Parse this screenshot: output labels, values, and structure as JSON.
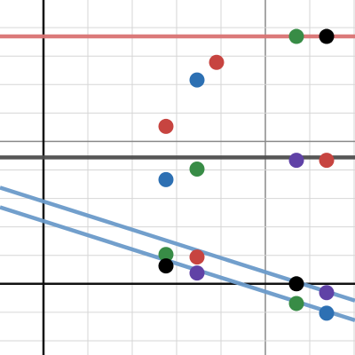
{
  "chart_data": {
    "type": "scatter",
    "xlim": [
      -0.98,
      7.02
    ],
    "ylim": [
      -2.5,
      9.97
    ],
    "xticks": [
      0,
      1,
      2,
      3,
      4,
      5,
      6,
      7
    ],
    "yticks": [
      -2,
      -1,
      0,
      1,
      2,
      3,
      4,
      5,
      6,
      7,
      8,
      9
    ],
    "major_xticks": [
      5
    ],
    "major_yticks": [
      5
    ],
    "grid": true,
    "lines": [
      {
        "color": "#d97373",
        "x": [
          -0.98,
          7.02
        ],
        "values": [
          8.69,
          8.69
        ]
      },
      {
        "color": "#4d4d4d",
        "x": [
          -0.98,
          7.02
        ],
        "values": [
          4.44,
          4.44
        ]
      },
      {
        "color": "#6a9ac9",
        "x": [
          -0.98,
          7.02
        ],
        "values": [
          3.38,
          -0.59
        ]
      },
      {
        "color": "#6a9ac9",
        "x": [
          -0.98,
          7.02
        ],
        "values": [
          2.69,
          -1.28
        ]
      }
    ],
    "series": [
      {
        "color": "#c74440",
        "x": [
          3.9,
          2.76,
          6.38,
          3.46
        ],
        "values": [
          7.78,
          5.53,
          4.34,
          0.94
        ]
      },
      {
        "color": "#2d70b3",
        "x": [
          3.46,
          2.76,
          6.38
        ],
        "values": [
          7.16,
          3.66,
          -1.03
        ]
      },
      {
        "color": "#388c46",
        "x": [
          5.7,
          3.46,
          2.76,
          5.7
        ],
        "values": [
          8.69,
          4.03,
          1.03,
          -0.69
        ]
      },
      {
        "color": "#6042a6",
        "x": [
          5.7,
          3.46,
          6.38
        ],
        "values": [
          4.34,
          0.38,
          -0.31
        ]
      },
      {
        "color": "#000000",
        "x": [
          6.38,
          2.76,
          5.7
        ],
        "values": [
          8.69,
          0.63,
          0
        ]
      }
    ]
  }
}
